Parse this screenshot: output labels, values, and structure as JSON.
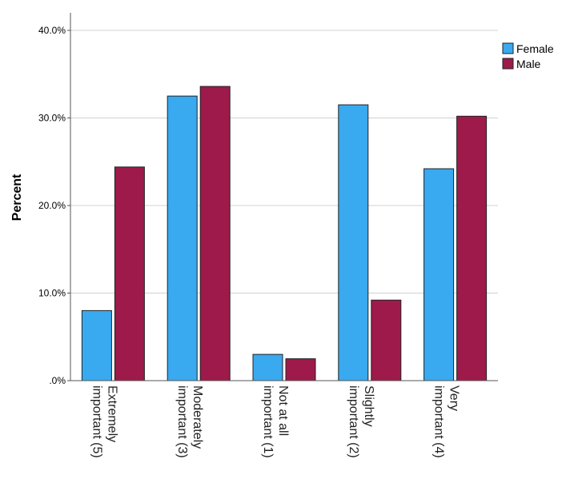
{
  "chart_data": {
    "type": "bar",
    "title": "",
    "xlabel": "",
    "ylabel": "Percent",
    "ylim": [
      0,
      40
    ],
    "yticks": [
      ".0%",
      "10.0%",
      "20.0%",
      "30.0%",
      "40.0%"
    ],
    "grid": "horizontal",
    "legend_position": "top-right",
    "categories": [
      "Extremely important (5)",
      "Moderately important (3)",
      "Not at all important (1)",
      "Slightly important (2)",
      "Very important (4)"
    ],
    "category_lines": [
      [
        "Extremely",
        "important (5)"
      ],
      [
        "Moderately",
        "important (3)"
      ],
      [
        "Not at all",
        "important (1)"
      ],
      [
        "Slightly",
        "important (2)"
      ],
      [
        "Very",
        "important (4)"
      ]
    ],
    "series": [
      {
        "name": "Female",
        "color": "#39a9f0",
        "values": [
          8.0,
          32.5,
          3.0,
          31.5,
          24.2
        ]
      },
      {
        "name": "Male",
        "color": "#9e1a4b",
        "values": [
          24.4,
          33.6,
          2.5,
          9.2,
          30.2
        ]
      }
    ]
  }
}
